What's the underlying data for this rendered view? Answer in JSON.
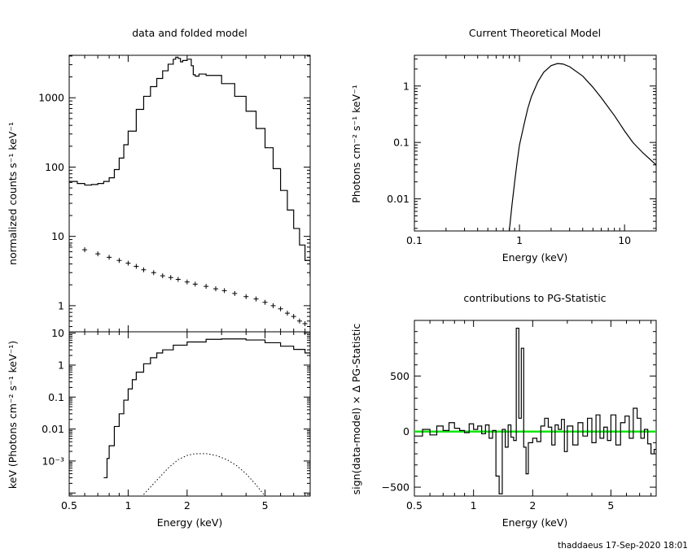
{
  "footer": "thaddaeus 17-Sep-2020 18:01",
  "colors": {
    "axis": "#000000",
    "zero_line": "#00e600"
  },
  "chart_data": [
    {
      "id": "counts",
      "type": "line",
      "title": "data and folded model",
      "xlabel": "",
      "ylabel": "normalized counts s⁻¹ keV⁻¹",
      "xscale": "log",
      "yscale": "log",
      "xlim": [
        0.5,
        8.5
      ],
      "ylim": [
        0.42,
        4100
      ],
      "yticks": [
        {
          "v": 1,
          "t": "1"
        },
        {
          "v": 10,
          "t": "10"
        },
        {
          "v": 100,
          "t": "100"
        },
        {
          "v": 1000,
          "t": "1000"
        }
      ],
      "series": [
        {
          "style": "step",
          "x": [
            0.5,
            0.55,
            0.6,
            0.65,
            0.7,
            0.75,
            0.8,
            0.85,
            0.9,
            0.95,
            1.0,
            1.1,
            1.2,
            1.3,
            1.4,
            1.5,
            1.6,
            1.7,
            1.75,
            1.8,
            1.85,
            1.9,
            2.0,
            2.1,
            2.15,
            2.2,
            2.3,
            2.5,
            3.0,
            3.5,
            4.0,
            4.5,
            5.0,
            5.5,
            6.0,
            6.5,
            7.0,
            7.5,
            8.0,
            8.5
          ],
          "y": [
            62,
            58,
            55,
            56,
            58,
            62,
            70,
            92,
            135,
            210,
            330,
            680,
            1050,
            1450,
            1900,
            2450,
            3050,
            3600,
            3850,
            3700,
            3300,
            3450,
            3600,
            2900,
            2150,
            2050,
            2200,
            2100,
            1600,
            1050,
            640,
            360,
            190,
            95,
            46,
            24,
            13,
            7.5,
            4.5,
            2.6
          ]
        },
        {
          "style": "points",
          "x": [
            0.5,
            0.6,
            0.7,
            0.8,
            0.9,
            1.0,
            1.1,
            1.2,
            1.35,
            1.5,
            1.65,
            1.8,
            2.0,
            2.2,
            2.5,
            2.8,
            3.1,
            3.5,
            4.0,
            4.5,
            5.0,
            5.5,
            6.0,
            6.5,
            7.0,
            7.5,
            8.0,
            8.5
          ],
          "y": [
            7.5,
            6.4,
            5.6,
            5.0,
            4.5,
            4.1,
            3.7,
            3.3,
            3.0,
            2.7,
            2.55,
            2.4,
            2.2,
            2.05,
            1.9,
            1.75,
            1.65,
            1.5,
            1.35,
            1.25,
            1.12,
            1.0,
            0.9,
            0.78,
            0.7,
            0.6,
            0.55,
            0.5
          ]
        }
      ]
    },
    {
      "id": "eeuf",
      "type": "line",
      "title": "",
      "xlabel": "Energy (keV)",
      "ylabel": "keV (Photons cm⁻² s⁻¹ keV⁻¹)",
      "xscale": "log",
      "yscale": "log",
      "xlim": [
        0.5,
        8.5
      ],
      "ylim": [
        8e-05,
        11
      ],
      "xticks": [
        {
          "v": 0.5,
          "t": "0.5"
        },
        {
          "v": 1,
          "t": "1"
        },
        {
          "v": 2,
          "t": "2"
        },
        {
          "v": 5,
          "t": "5"
        }
      ],
      "yticks": [
        {
          "v": 0.001,
          "t": "10⁻³"
        },
        {
          "v": 0.01,
          "t": "0.01"
        },
        {
          "v": 0.1,
          "t": "0.1"
        },
        {
          "v": 1,
          "t": "1"
        },
        {
          "v": 10,
          "t": "10"
        }
      ],
      "series": [
        {
          "style": "step",
          "x": [
            0.75,
            0.78,
            0.8,
            0.85,
            0.9,
            0.95,
            1.0,
            1.05,
            1.1,
            1.2,
            1.3,
            1.4,
            1.5,
            1.7,
            2.0,
            2.5,
            3.0,
            4.0,
            5.0,
            6.0,
            7.0,
            8.0,
            8.5
          ],
          "y": [
            0.0003,
            0.0012,
            0.003,
            0.012,
            0.03,
            0.08,
            0.18,
            0.35,
            0.6,
            1.1,
            1.7,
            2.4,
            3.0,
            4.2,
            5.3,
            6.4,
            6.6,
            6.1,
            5.0,
            3.9,
            3.1,
            2.4,
            1.9
          ]
        },
        {
          "style": "dotted",
          "x": [
            1.2,
            1.4,
            1.6,
            1.8,
            2.0,
            2.2,
            2.5,
            2.8,
            3.2,
            3.6,
            4.0,
            4.5,
            5.0
          ],
          "y": [
            9e-05,
            0.00025,
            0.0006,
            0.0011,
            0.0015,
            0.0017,
            0.0017,
            0.0015,
            0.0011,
            0.0007,
            0.0004,
            0.00018,
            8e-05
          ]
        }
      ]
    },
    {
      "id": "model",
      "type": "line",
      "title": "Current Theoretical Model",
      "xlabel": "Energy (keV)",
      "ylabel": "Photons cm⁻² s⁻¹ keV⁻¹",
      "xscale": "log",
      "yscale": "log",
      "xlim": [
        0.1,
        20
      ],
      "ylim": [
        0.0027,
        3.5
      ],
      "xticks": [
        {
          "v": 0.1,
          "t": "0.1"
        },
        {
          "v": 1,
          "t": "1"
        },
        {
          "v": 10,
          "t": "10"
        }
      ],
      "yticks": [
        {
          "v": 0.01,
          "t": "0.01"
        },
        {
          "v": 0.1,
          "t": "0.1"
        },
        {
          "v": 1,
          "t": "1"
        }
      ],
      "series": [
        {
          "style": "line",
          "x": [
            0.8,
            0.85,
            0.9,
            0.95,
            1.0,
            1.1,
            1.2,
            1.3,
            1.5,
            1.7,
            2.0,
            2.3,
            2.6,
            3.0,
            4.0,
            5.0,
            6.0,
            8.0,
            10.0,
            12.0,
            15.0,
            20.0
          ],
          "y": [
            0.0027,
            0.008,
            0.02,
            0.045,
            0.09,
            0.2,
            0.4,
            0.65,
            1.2,
            1.75,
            2.3,
            2.5,
            2.45,
            2.2,
            1.5,
            0.95,
            0.62,
            0.3,
            0.16,
            0.1,
            0.065,
            0.04
          ]
        }
      ]
    },
    {
      "id": "residuals",
      "type": "line",
      "title": "contributions to PG-Statistic",
      "xlabel": "Energy (keV)",
      "ylabel": "sign(data-model) × Δ PG-Statistic",
      "xscale": "log",
      "yscale": "linear",
      "xlim": [
        0.5,
        8.5
      ],
      "ylim": [
        -580,
        1000
      ],
      "xticks": [
        {
          "v": 0.5,
          "t": "0.5"
        },
        {
          "v": 1,
          "t": "1"
        },
        {
          "v": 2,
          "t": "2"
        },
        {
          "v": 5,
          "t": "5"
        }
      ],
      "yticks": [
        {
          "v": -500,
          "t": "−500"
        },
        {
          "v": 0,
          "t": "0"
        },
        {
          "v": 500,
          "t": "500"
        }
      ],
      "series": [
        {
          "style": "step",
          "x": [
            0.5,
            0.55,
            0.6,
            0.65,
            0.7,
            0.75,
            0.8,
            0.85,
            0.9,
            0.95,
            1.0,
            1.05,
            1.1,
            1.15,
            1.2,
            1.25,
            1.3,
            1.35,
            1.4,
            1.45,
            1.5,
            1.55,
            1.6,
            1.65,
            1.7,
            1.75,
            1.8,
            1.85,
            1.9,
            2.0,
            2.1,
            2.2,
            2.3,
            2.4,
            2.5,
            2.6,
            2.7,
            2.8,
            2.9,
            3.0,
            3.2,
            3.4,
            3.6,
            3.8,
            4.0,
            4.2,
            4.4,
            4.6,
            4.8,
            5.0,
            5.3,
            5.6,
            5.9,
            6.2,
            6.5,
            6.8,
            7.1,
            7.4,
            7.7,
            8.0,
            8.3
          ],
          "y": [
            -40,
            20,
            -30,
            50,
            10,
            80,
            30,
            10,
            -10,
            70,
            20,
            50,
            -20,
            60,
            -60,
            10,
            -400,
            -560,
            20,
            -140,
            60,
            -50,
            -80,
            930,
            120,
            750,
            -140,
            -380,
            -100,
            -60,
            -90,
            50,
            120,
            40,
            -120,
            60,
            20,
            110,
            -180,
            50,
            -120,
            80,
            -40,
            120,
            -100,
            150,
            -60,
            40,
            -80,
            150,
            -120,
            80,
            140,
            -60,
            210,
            120,
            -60,
            20,
            -110,
            -200,
            -160
          ]
        }
      ],
      "reference_line": 0
    }
  ]
}
